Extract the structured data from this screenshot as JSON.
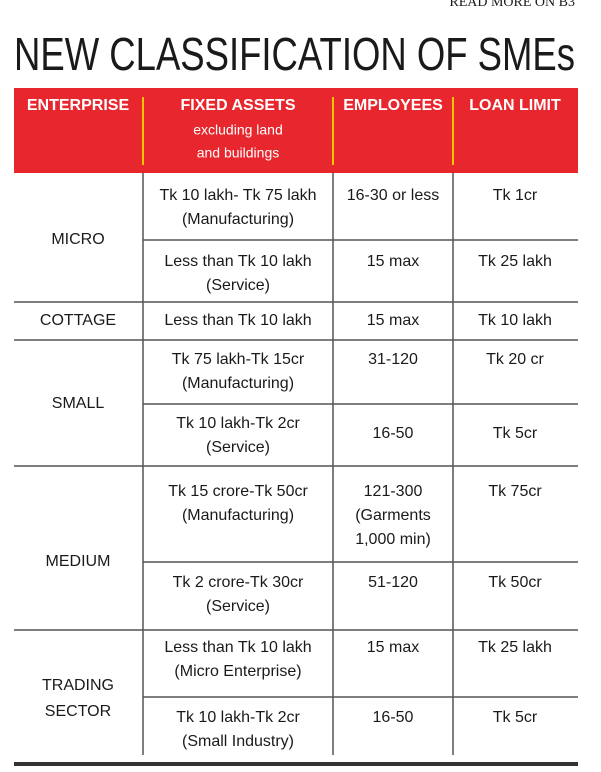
{
  "top_link": "READ MORE ON B3",
  "title": "NEW CLASSIFICATION OF SMEs",
  "table": {
    "headers": [
      "ENTERPRISE",
      "FIXED ASSETS",
      "EMPLOYEES",
      "LOAN LIMIT"
    ],
    "header_note": [
      "excluding land",
      "and buildings"
    ],
    "groups": [
      {
        "enterprise": [
          "MICRO"
        ],
        "rows": [
          [
            [
              "Tk 10 lakh- Tk 75 lakh",
              "(Manufacturing)"
            ],
            [
              "16-30 or less"
            ],
            [
              "Tk 1cr"
            ]
          ],
          [
            [
              "Less than Tk 10 lakh",
              "(Service)"
            ],
            [
              "15 max"
            ],
            [
              "Tk 25 lakh"
            ]
          ]
        ]
      },
      {
        "enterprise": [
          "COTTAGE"
        ],
        "rows": [
          [
            [
              "Less than Tk 10 lakh"
            ],
            [
              "15 max"
            ],
            [
              "Tk 10 lakh"
            ]
          ]
        ]
      },
      {
        "enterprise": [
          "SMALL"
        ],
        "rows": [
          [
            [
              "Tk 75 lakh-Tk 15cr",
              "(Manufacturing)"
            ],
            [
              "31-120"
            ],
            [
              "Tk 20 cr"
            ]
          ],
          [
            [
              "Tk 10 lakh-Tk 2cr",
              "(Service)"
            ],
            [
              "16-50"
            ],
            [
              "Tk 5cr"
            ]
          ]
        ]
      },
      {
        "enterprise": [
          "MEDIUM"
        ],
        "rows": [
          [
            [
              "Tk 15 crore-Tk 50cr",
              "(Manufacturing)"
            ],
            [
              "121-300",
              "(Garments",
              "1,000 min)"
            ],
            [
              "Tk 75cr"
            ]
          ],
          [
            [
              "Tk 2 crore-Tk 30cr",
              "(Service)"
            ],
            [
              "51-120"
            ],
            [
              "Tk 50cr"
            ]
          ]
        ]
      },
      {
        "enterprise": [
          "TRADING",
          "SECTOR"
        ],
        "rows": [
          [
            [
              "Less than Tk 10 lakh",
              "(Micro Enterprise)"
            ],
            [
              "15 max"
            ],
            [
              "Tk 25 lakh"
            ]
          ],
          [
            [
              "Tk 10 lakh-Tk 2cr",
              "(Small Industry)"
            ],
            [
              "16-50"
            ],
            [
              "Tk 5cr"
            ]
          ]
        ]
      }
    ]
  }
}
